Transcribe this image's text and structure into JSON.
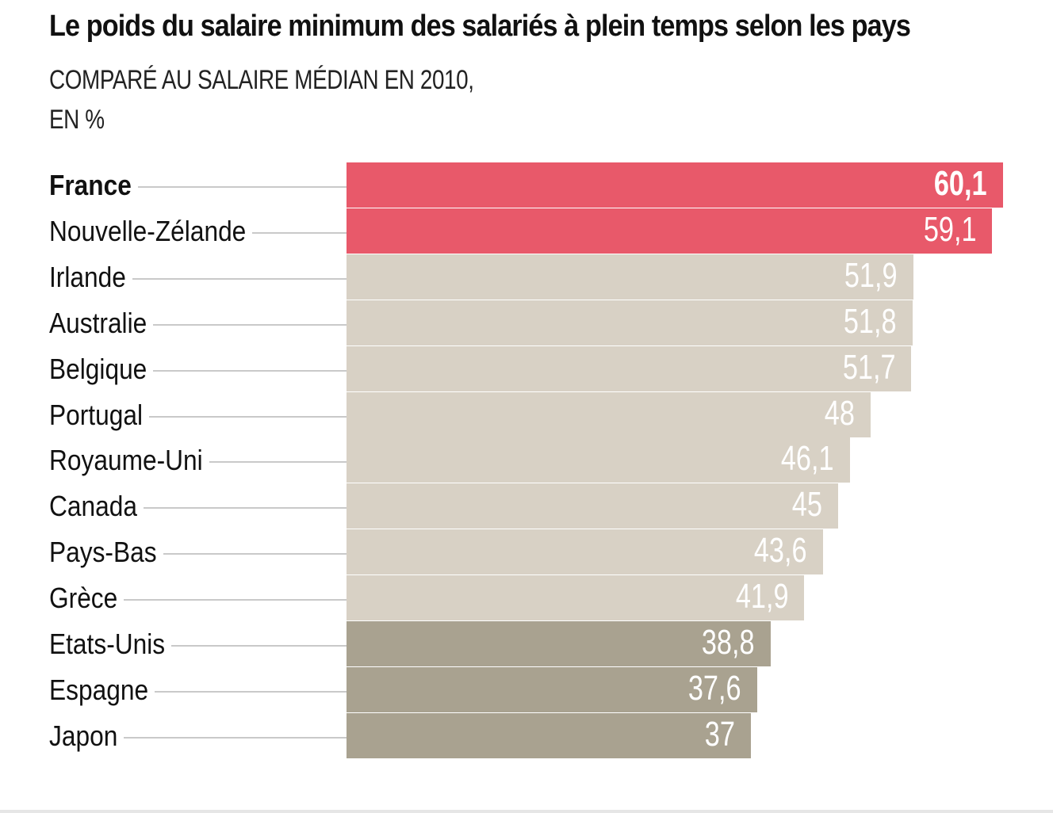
{
  "chart_data": {
    "type": "bar",
    "orientation": "horizontal",
    "title": "Le poids du salaire minimum des salariés à plein temps selon les pays",
    "subtitle": [
      "COMPARÉ AU SALAIRE MÉDIAN EN 2010,",
      "EN %"
    ],
    "categories": [
      "France",
      "Nouvelle-Zélande",
      "Irlande",
      "Australie",
      "Belgique",
      "Portugal",
      "Royaume-Uni",
      "Canada",
      "Pays-Bas",
      "Grèce",
      "Etats-Unis",
      "Espagne",
      "Japon"
    ],
    "values": [
      60.1,
      59.1,
      51.9,
      51.8,
      51.7,
      48,
      46.1,
      45,
      43.6,
      41.9,
      38.8,
      37.6,
      37
    ],
    "value_labels": [
      "60,1",
      "59,1",
      "51,9",
      "51,8",
      "51,7",
      "48",
      "46,1",
      "45",
      "43,6",
      "41,9",
      "38,8",
      "37,6",
      "37"
    ],
    "groups": [
      "high",
      "high",
      "mid",
      "mid",
      "mid",
      "mid",
      "mid",
      "mid",
      "mid",
      "mid",
      "low",
      "low",
      "low"
    ],
    "highlight": "France",
    "colors": {
      "high": "#e8596a",
      "mid": "#d8d1c5",
      "low": "#a9a290"
    },
    "xlim": [
      0,
      60.1
    ],
    "grid": false,
    "legend": "none"
  }
}
